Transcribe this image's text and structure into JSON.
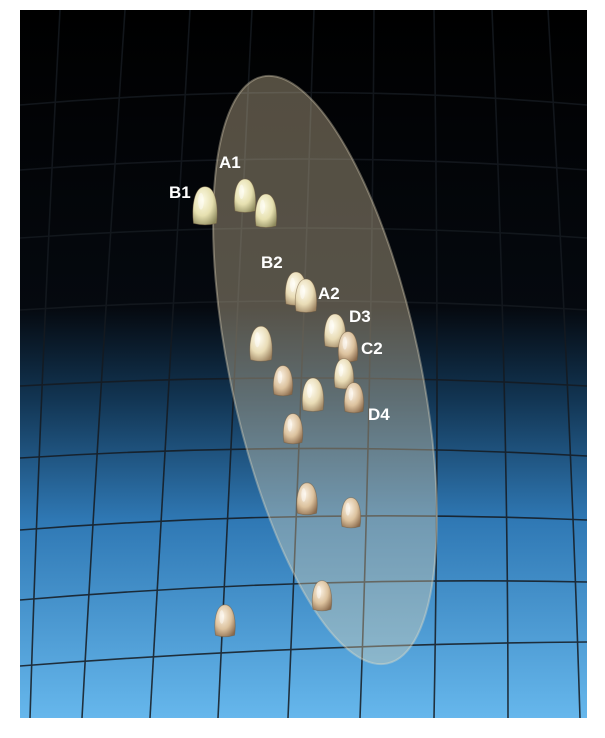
{
  "labels": {
    "B1": "B1",
    "A1": "A1",
    "B2": "B2",
    "A2": "A2",
    "D3": "D3",
    "C2": "C2",
    "D4": "D4"
  },
  "colors": {
    "background_top": "#000000",
    "background_bottom": "#5fb0e8",
    "grid": "#1a1a1a",
    "envelope": "#e8d6b0",
    "tooth_light": "#fbf6df",
    "tooth_dark": "#b99a72"
  }
}
